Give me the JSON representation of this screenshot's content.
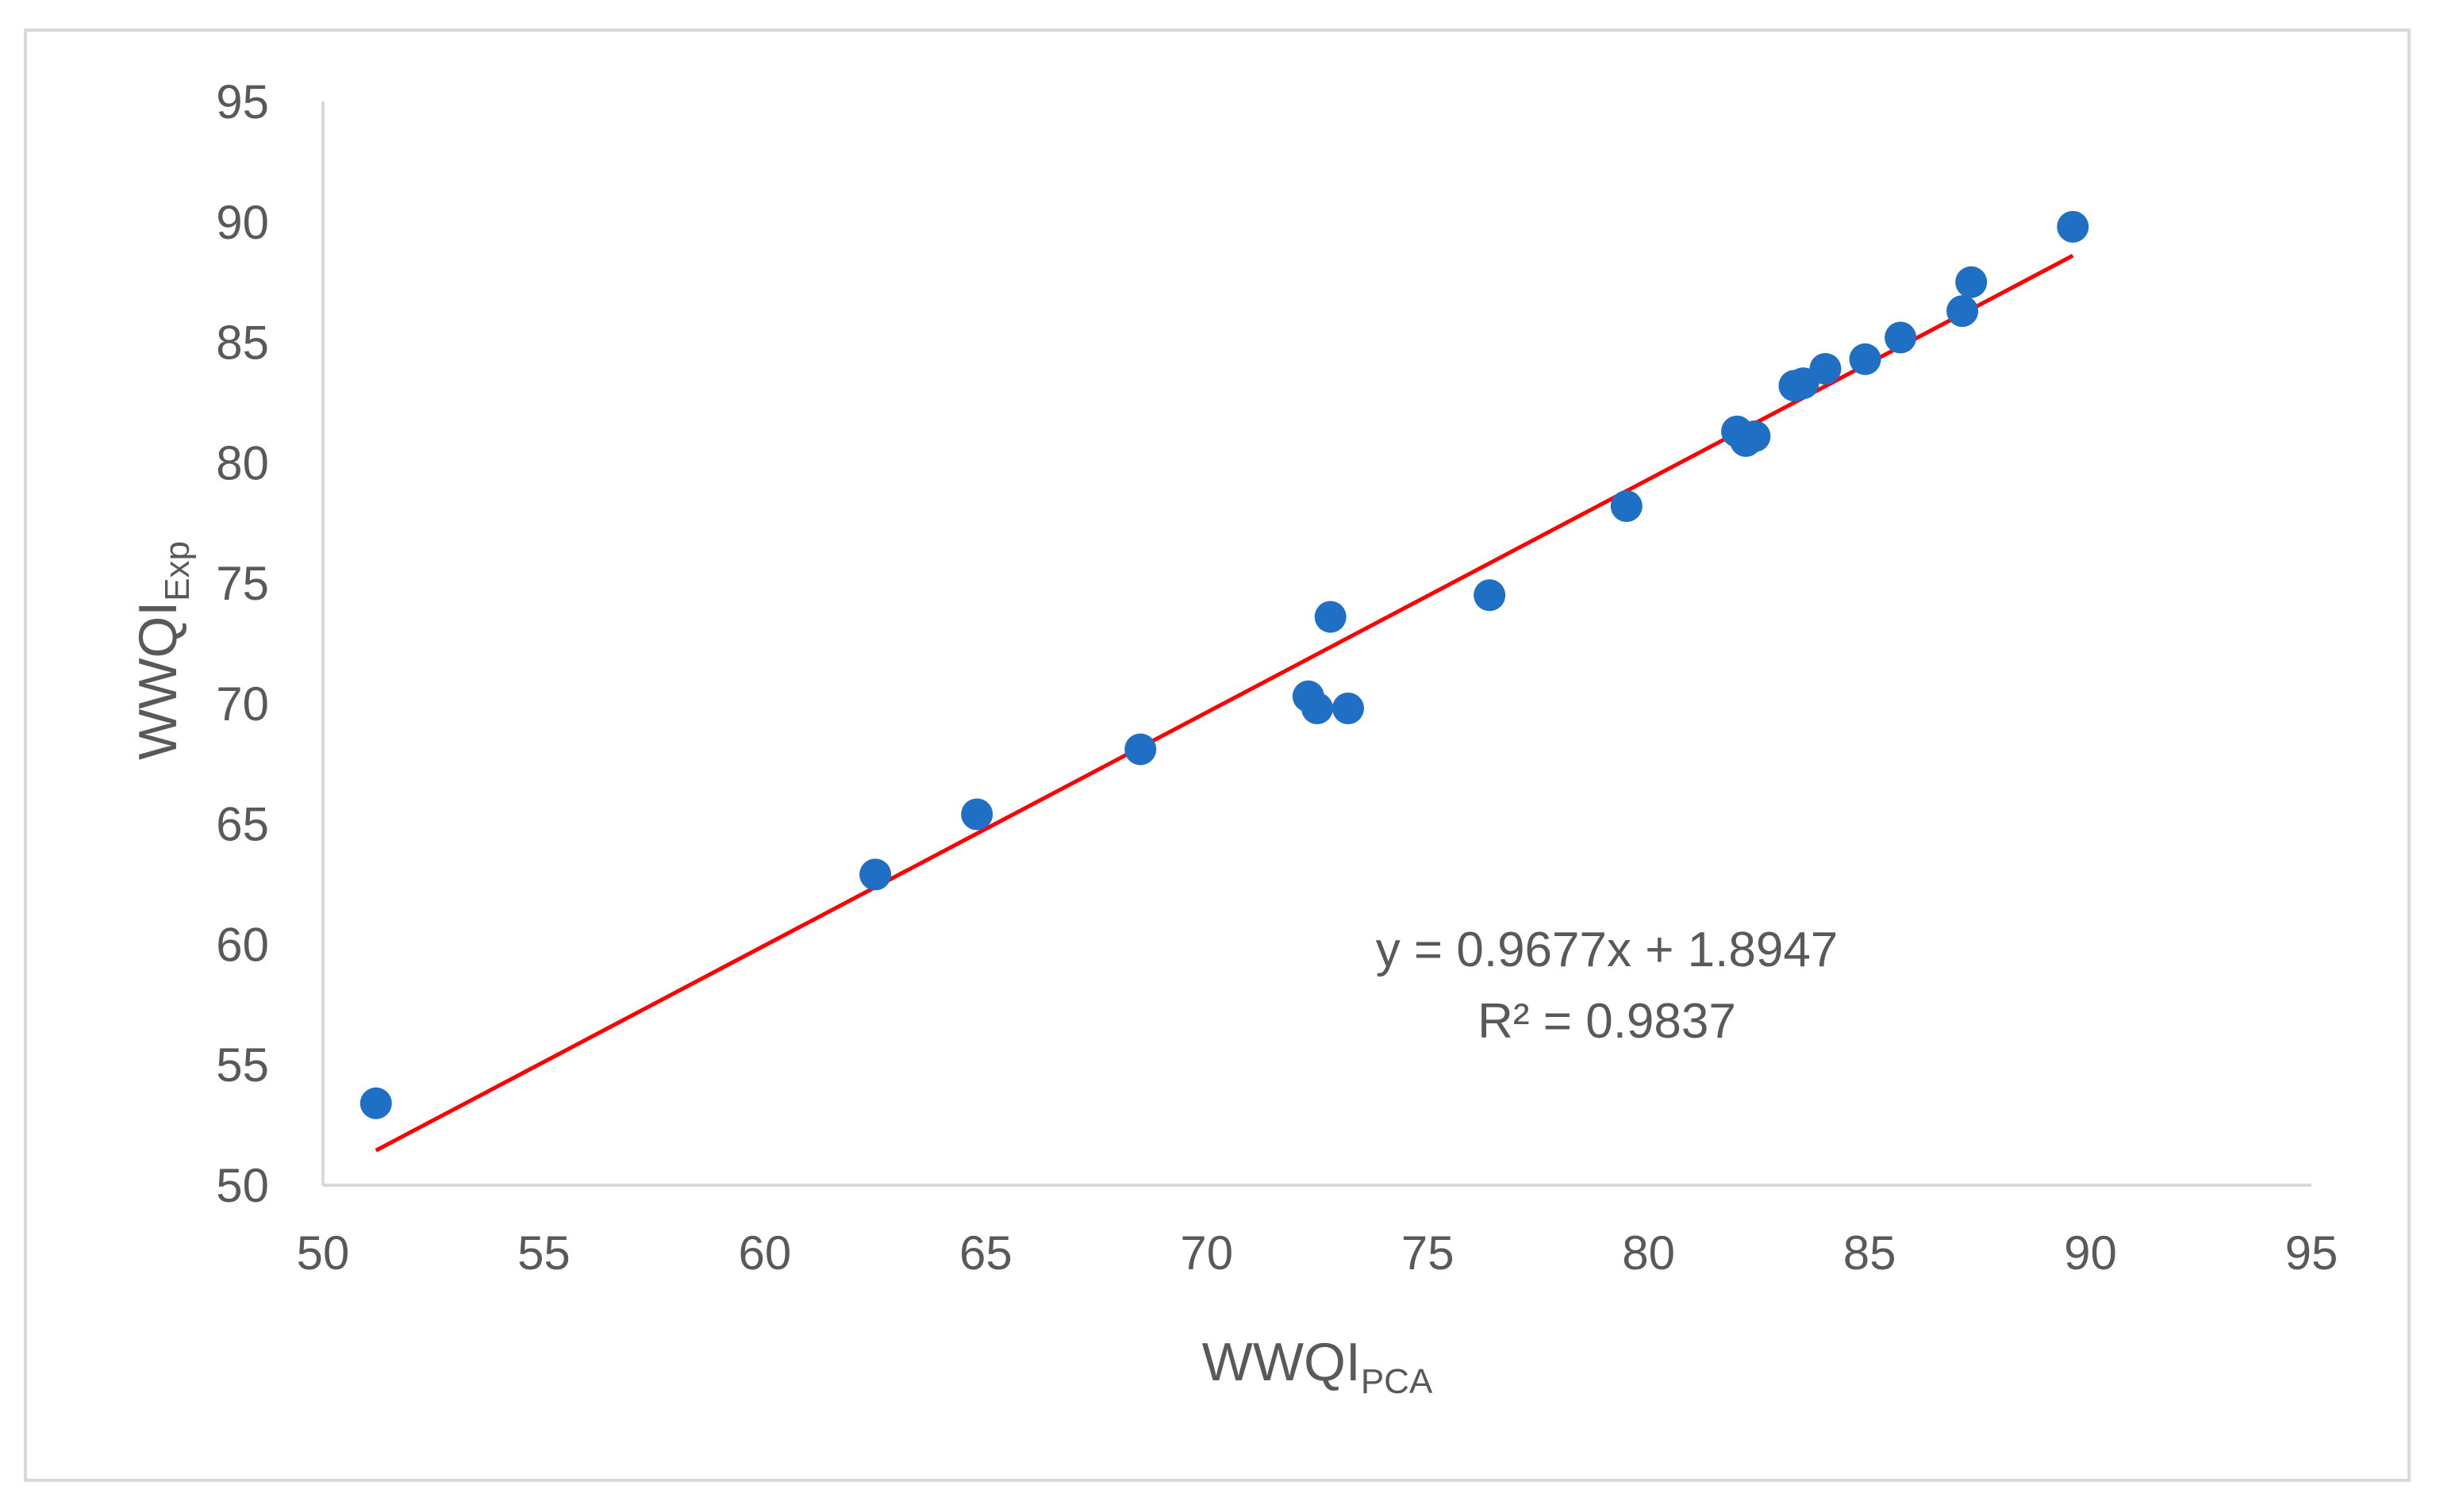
{
  "chart_data": {
    "type": "scatter",
    "xlabel": {
      "main": "WWQI",
      "sub": "PCA"
    },
    "ylabel": {
      "main": "WWQI",
      "sub": "Exp"
    },
    "xlim": [
      50,
      95
    ],
    "ylim": [
      50,
      95
    ],
    "x_ticks": [
      "50",
      "55",
      "60",
      "65",
      "70",
      "75",
      "80",
      "85",
      "90",
      "95"
    ],
    "y_ticks": [
      "50",
      "55",
      "60",
      "65",
      "70",
      "75",
      "80",
      "85",
      "90",
      "95"
    ],
    "grid": false,
    "legend": "none",
    "point_color": "#1f6fc5",
    "trendline_color": "#ff0000",
    "points": [
      {
        "x": 51.2,
        "y": 53.4
      },
      {
        "x": 62.5,
        "y": 62.9
      },
      {
        "x": 64.8,
        "y": 65.4
      },
      {
        "x": 68.5,
        "y": 68.1
      },
      {
        "x": 72.3,
        "y": 70.3
      },
      {
        "x": 72.5,
        "y": 69.8
      },
      {
        "x": 72.8,
        "y": 73.6
      },
      {
        "x": 73.2,
        "y": 69.8
      },
      {
        "x": 76.4,
        "y": 74.5
      },
      {
        "x": 79.5,
        "y": 78.2
      },
      {
        "x": 82.0,
        "y": 81.3
      },
      {
        "x": 82.2,
        "y": 80.9
      },
      {
        "x": 82.4,
        "y": 81.1
      },
      {
        "x": 83.3,
        "y": 83.2
      },
      {
        "x": 83.5,
        "y": 83.3
      },
      {
        "x": 84.0,
        "y": 83.9
      },
      {
        "x": 84.9,
        "y": 84.3
      },
      {
        "x": 85.7,
        "y": 85.2
      },
      {
        "x": 87.1,
        "y": 86.3
      },
      {
        "x": 87.3,
        "y": 87.5
      },
      {
        "x": 89.6,
        "y": 89.8
      }
    ],
    "trendline": {
      "slope": 0.9677,
      "intercept": 1.8947,
      "x_from": 51.2,
      "x_to": 89.6
    },
    "annotations": {
      "equation": "y = 0.9677x + 1.8947",
      "r_squared": "R² = 0.9837"
    }
  }
}
